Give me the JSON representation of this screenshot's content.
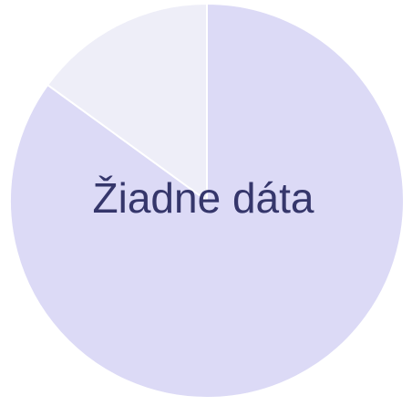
{
  "chart_data": {
    "type": "pie",
    "title": "",
    "empty_message": "Žiadne dáta",
    "slices": [
      {
        "value": 85,
        "color": "#dcdaf6"
      },
      {
        "value": 15,
        "color": "#eeeef8"
      }
    ],
    "start_angle_deg": 0,
    "direction": "clockwise"
  }
}
